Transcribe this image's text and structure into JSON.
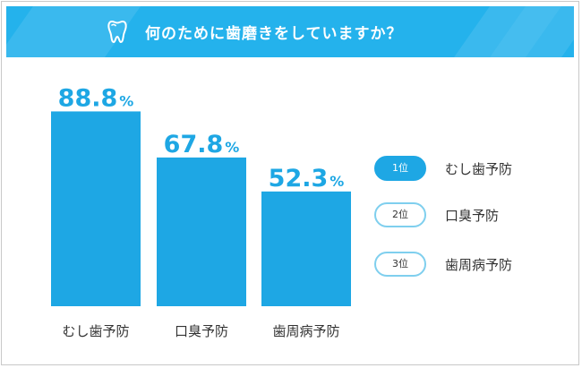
{
  "header": {
    "title": "何のために歯磨きをしていますか？",
    "accent_color": "#24b2ec",
    "icon": "tooth-icon"
  },
  "chart_data": {
    "type": "bar",
    "title": "何のために歯磨きをしていますか？",
    "categories": [
      "むし歯予防",
      "口臭予防",
      "歯周病予防"
    ],
    "values": [
      88.8,
      67.8,
      52.3
    ],
    "value_labels": [
      "88.8",
      "67.8",
      "52.3"
    ],
    "unit": "%",
    "bar_color": "#1ea7e4",
    "ylim": [
      0,
      100
    ],
    "grid": false
  },
  "ranking": {
    "items": [
      {
        "rank": "1位",
        "label": "むし歯予防",
        "highlight": true
      },
      {
        "rank": "2位",
        "label": "口臭予防",
        "highlight": false
      },
      {
        "rank": "3位",
        "label": "歯周病予防",
        "highlight": false
      }
    ]
  }
}
